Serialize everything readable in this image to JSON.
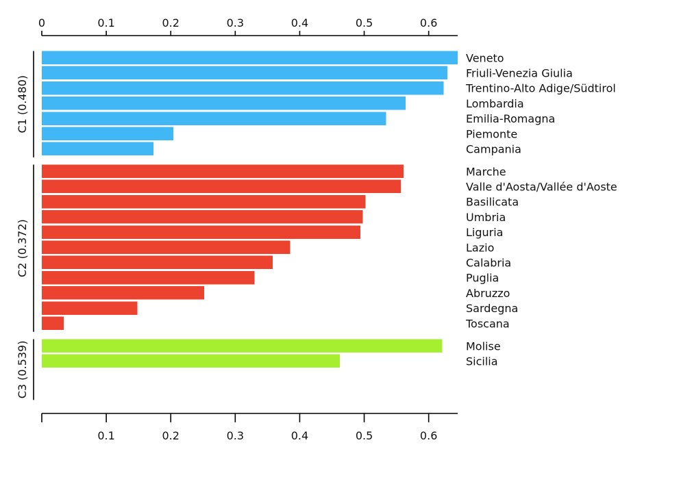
{
  "chart_data": {
    "type": "bar",
    "orientation": "horizontal",
    "title": "",
    "xlabel": "",
    "ylabel": "",
    "xlim": [
      0,
      0.645
    ],
    "grid": false,
    "legend": "none",
    "top_ticks": [
      {
        "value": 0,
        "label": "0"
      },
      {
        "value": 0.1,
        "label": "0.1"
      },
      {
        "value": 0.2,
        "label": "0.2"
      },
      {
        "value": 0.3,
        "label": "0.3"
      },
      {
        "value": 0.4,
        "label": "0.4"
      },
      {
        "value": 0.5,
        "label": "0.5"
      },
      {
        "value": 0.6,
        "label": "0.6"
      }
    ],
    "bottom_ticks": [
      {
        "value": 0,
        "label": ""
      },
      {
        "value": 0.1,
        "label": "0.1"
      },
      {
        "value": 0.2,
        "label": "0.2"
      },
      {
        "value": 0.3,
        "label": "0.3"
      },
      {
        "value": 0.4,
        "label": "0.4"
      },
      {
        "value": 0.5,
        "label": "0.5"
      },
      {
        "value": 0.6,
        "label": "0.6"
      }
    ],
    "groups": [
      {
        "label": "C1 (0.480)",
        "color": "#41b8f5",
        "slots": 7,
        "items": [
          {
            "name": "Veneto",
            "value": 0.645
          },
          {
            "name": "Friuli-Venezia Giulia",
            "value": 0.629
          },
          {
            "name": "Trentino-Alto Adige/Südtirol",
            "value": 0.623
          },
          {
            "name": "Lombardia",
            "value": 0.564
          },
          {
            "name": "Emilia-Romagna",
            "value": 0.534
          },
          {
            "name": "Piemonte",
            "value": 0.204
          },
          {
            "name": "Campania",
            "value": 0.173
          }
        ]
      },
      {
        "label": "C2 (0.372)",
        "color": "#ec4330",
        "slots": 11,
        "items": [
          {
            "name": "Marche",
            "value": 0.561
          },
          {
            "name": "Valle d'Aosta/Vallée d'Aoste",
            "value": 0.557
          },
          {
            "name": "Basilicata",
            "value": 0.502
          },
          {
            "name": "Umbria",
            "value": 0.498
          },
          {
            "name": "Liguria",
            "value": 0.494
          },
          {
            "name": "Lazio",
            "value": 0.385
          },
          {
            "name": "Calabria",
            "value": 0.358
          },
          {
            "name": "Puglia",
            "value": 0.33
          },
          {
            "name": "Abruzzo",
            "value": 0.252
          },
          {
            "name": "Sardegna",
            "value": 0.148
          },
          {
            "name": "Toscana",
            "value": 0.034
          }
        ]
      },
      {
        "label": "C3 (0.539)",
        "color": "#a6ef30",
        "slots": 4,
        "items": [
          {
            "name": "Molise",
            "value": 0.621
          },
          {
            "name": "Sicilia",
            "value": 0.462
          }
        ]
      }
    ]
  }
}
